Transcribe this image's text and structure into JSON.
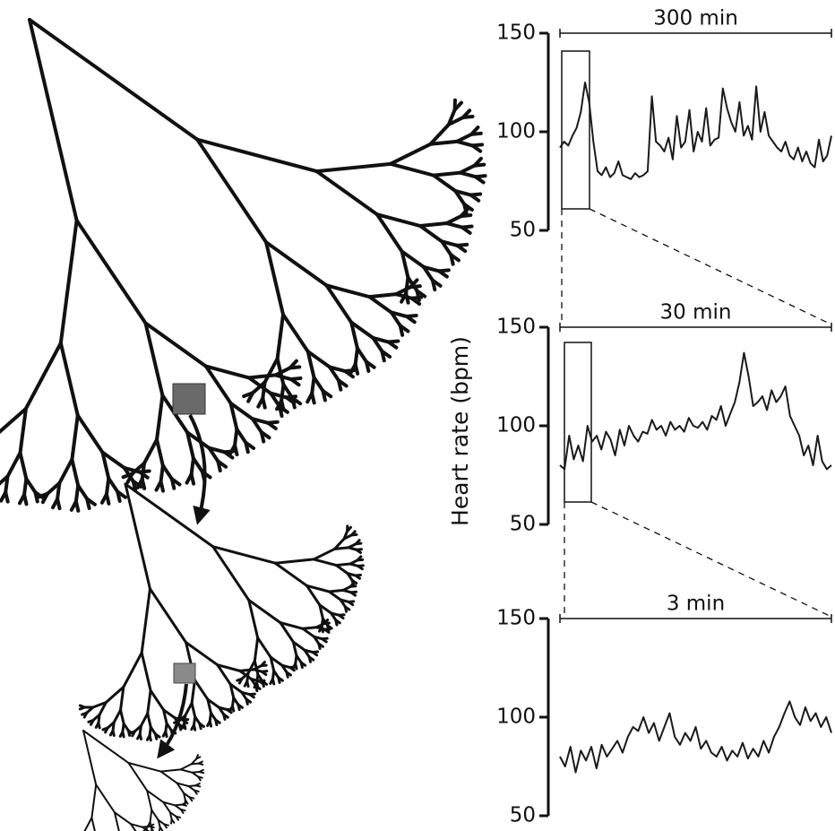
{
  "chart_data": [
    {
      "type": "line",
      "span_label": "300 min",
      "ylim": [
        50,
        150
      ],
      "yticks": [
        50,
        100,
        150
      ],
      "color": "#1a1a1a",
      "values": [
        92,
        95,
        93,
        98,
        102,
        110,
        125,
        115,
        95,
        80,
        78,
        82,
        77,
        79,
        85,
        78,
        77,
        76,
        79,
        77,
        78,
        80,
        118,
        95,
        93,
        90,
        97,
        86,
        108,
        92,
        95,
        111,
        90,
        100,
        95,
        112,
        93,
        96,
        97,
        122,
        112,
        105,
        100,
        115,
        98,
        103,
        96,
        123,
        100,
        110,
        98,
        95,
        92,
        90,
        95,
        88,
        86,
        92,
        85,
        90,
        84,
        82,
        96,
        85,
        88,
        98
      ]
    },
    {
      "type": "line",
      "span_label": "30 min",
      "y_label": "Heart rate (bpm)",
      "ylim": [
        50,
        150
      ],
      "yticks": [
        50,
        100,
        150
      ],
      "color": "#1a1a1a",
      "values": [
        80,
        78,
        95,
        83,
        90,
        82,
        100,
        92,
        95,
        88,
        97,
        93,
        85,
        98,
        90,
        100,
        95,
        92,
        97,
        96,
        103,
        98,
        100,
        95,
        102,
        98,
        100,
        97,
        104,
        100,
        99,
        102,
        98,
        105,
        103,
        110,
        100,
        106,
        112,
        122,
        137,
        125,
        110,
        112,
        115,
        108,
        118,
        112,
        115,
        120,
        105,
        100,
        95,
        85,
        90,
        80,
        95,
        82,
        78,
        80
      ]
    },
    {
      "type": "line",
      "span_label": "3 min",
      "ylim": [
        50,
        150
      ],
      "yticks": [
        50,
        100,
        150
      ],
      "color": "#1a1a1a",
      "values": [
        80,
        75,
        85,
        72,
        83,
        78,
        85,
        74,
        86,
        80,
        84,
        88,
        82,
        90,
        95,
        93,
        100,
        92,
        97,
        88,
        95,
        102,
        90,
        86,
        92,
        88,
        95,
        84,
        88,
        82,
        80,
        85,
        78,
        83,
        80,
        87,
        79,
        84,
        80,
        88,
        82,
        90,
        95,
        102,
        108,
        100,
        96,
        105,
        98,
        102,
        95,
        100,
        92
      ]
    }
  ]
}
